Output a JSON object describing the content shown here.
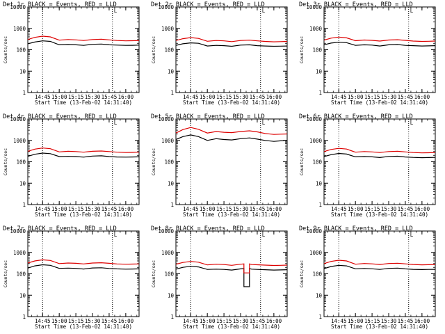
{
  "colors": {
    "events": "#000000",
    "lld": "#dd0000",
    "axes": "#000000",
    "background": "#ffffff"
  },
  "chart_data": [
    {
      "type": "line",
      "title": "Det 1r BLACK = Events, RED = LLD",
      "xlabel": "Start Time (13-Feb-02 14:31:40)",
      "ylabel": "Counts/sec",
      "yscale": "log",
      "ylim": [
        1,
        10000
      ],
      "yticks": [
        "1",
        "10",
        "100",
        "1000",
        "10000"
      ],
      "xlim": [
        "14:31:40",
        "16:12:00"
      ],
      "xticks": [
        "14:45",
        "15:00",
        "15:15",
        "15:30",
        "15:45",
        "16:00"
      ],
      "vlines": [
        "14:45",
        "15:48"
      ],
      "corner_mark": "L",
      "x": [
        "14:31:40",
        "14:38",
        "14:45",
        "14:52",
        "15:00",
        "15:08",
        "15:15",
        "15:22",
        "15:30",
        "15:38",
        "15:45",
        "15:52",
        "16:00",
        "16:06",
        "16:12"
      ],
      "series": [
        {
          "name": "BLACK = Events",
          "values": [
            190,
            230,
            260,
            245,
            170,
            175,
            170,
            160,
            180,
            185,
            170,
            165,
            160,
            162,
            165
          ]
        },
        {
          "name": "RED = LLD",
          "values": [
            300,
            380,
            430,
            400,
            280,
            300,
            290,
            270,
            300,
            310,
            290,
            270,
            260,
            265,
            268
          ]
        }
      ]
    },
    {
      "type": "line",
      "title": "Det 2r BLACK = Events, RED = LLD",
      "xlabel": "Start Time (13-Feb-02 14:31:40)",
      "ylabel": "Counts/sec",
      "yscale": "log",
      "ylim": [
        1,
        10000
      ],
      "yticks": [
        "1",
        "10",
        "100",
        "1000",
        "10000"
      ],
      "xlim": [
        "14:31:40",
        "16:12:00"
      ],
      "xticks": [
        "14:45",
        "15:00",
        "15:15",
        "15:30",
        "15:45",
        "16:00"
      ],
      "vlines": [
        "14:45",
        "15:48"
      ],
      "corner_mark": "L",
      "x": [
        "14:31:40",
        "14:38",
        "14:45",
        "14:52",
        "15:00",
        "15:08",
        "15:15",
        "15:22",
        "15:30",
        "15:38",
        "15:45",
        "15:52",
        "16:00",
        "16:06",
        "16:12"
      ],
      "series": [
        {
          "name": "BLACK = Events",
          "values": [
            160,
            190,
            210,
            200,
            150,
            160,
            155,
            145,
            165,
            170,
            155,
            150,
            145,
            148,
            150
          ]
        },
        {
          "name": "RED = LLD",
          "values": [
            270,
            330,
            370,
            340,
            250,
            270,
            260,
            240,
            270,
            280,
            260,
            245,
            235,
            240,
            245
          ]
        }
      ]
    },
    {
      "type": "line",
      "title": "Det 3r BLACK = Events, RED = LLD",
      "xlabel": "Start Time (13-Feb-02 14:31:40)",
      "ylabel": "Counts/sec",
      "yscale": "log",
      "ylim": [
        1,
        10000
      ],
      "yticks": [
        "1",
        "10",
        "100",
        "1000",
        "10000"
      ],
      "xlim": [
        "14:31:40",
        "16:12:00"
      ],
      "xticks": [
        "14:45",
        "15:00",
        "15:15",
        "15:30",
        "15:45",
        "16:00"
      ],
      "vlines": [
        "14:45",
        "15:48"
      ],
      "corner_mark": "L",
      "x": [
        "14:31:40",
        "14:38",
        "14:45",
        "14:52",
        "15:00",
        "15:08",
        "15:15",
        "15:22",
        "15:30",
        "15:38",
        "15:45",
        "15:52",
        "16:00",
        "16:06",
        "16:12"
      ],
      "series": [
        {
          "name": "BLACK = Events",
          "values": [
            170,
            205,
            225,
            215,
            160,
            170,
            165,
            150,
            170,
            175,
            160,
            155,
            150,
            152,
            155
          ]
        },
        {
          "name": "RED = LLD",
          "values": [
            280,
            350,
            390,
            360,
            265,
            285,
            275,
            255,
            285,
            295,
            275,
            255,
            245,
            250,
            255
          ]
        }
      ]
    },
    {
      "type": "line",
      "title": "Det 4r BLACK = Events, RED = LLD",
      "xlabel": "Start Time (13-Feb-02 14:31:40)",
      "ylabel": "Counts/sec",
      "yscale": "log",
      "ylim": [
        1,
        10000
      ],
      "yticks": [
        "1",
        "10",
        "100",
        "1000",
        "10000"
      ],
      "xlim": [
        "14:31:40",
        "16:12:00"
      ],
      "xticks": [
        "14:45",
        "15:00",
        "15:15",
        "15:30",
        "15:45",
        "16:00"
      ],
      "vlines": [
        "14:45",
        "15:48"
      ],
      "corner_mark": "L",
      "x": [
        "14:31:40",
        "14:38",
        "14:45",
        "14:52",
        "15:00",
        "15:08",
        "15:15",
        "15:22",
        "15:30",
        "15:38",
        "15:45",
        "15:52",
        "16:00",
        "16:06",
        "16:12"
      ],
      "series": [
        {
          "name": "BLACK = Events",
          "values": [
            180,
            225,
            255,
            240,
            175,
            180,
            175,
            165,
            185,
            190,
            175,
            168,
            165,
            168,
            170
          ]
        },
        {
          "name": "RED = LLD",
          "values": [
            310,
            390,
            440,
            410,
            290,
            310,
            300,
            280,
            310,
            320,
            300,
            280,
            270,
            275,
            280
          ]
        }
      ]
    },
    {
      "type": "line",
      "title": "Det 5r BLACK = Events, RED = LLD",
      "xlabel": "Start Time (13-Feb-02 14:31:40)",
      "ylabel": "Counts/sec",
      "yscale": "log",
      "ylim": [
        1,
        10000
      ],
      "yticks": [
        "1",
        "10",
        "100",
        "1000",
        "10000"
      ],
      "xlim": [
        "14:31:40",
        "16:12:00"
      ],
      "xticks": [
        "14:45",
        "15:00",
        "15:15",
        "15:30",
        "15:45",
        "16:00"
      ],
      "vlines": [
        "14:45",
        "15:48"
      ],
      "corner_mark": "L",
      "x": [
        "14:31:40",
        "14:38",
        "14:45",
        "14:52",
        "15:00",
        "15:08",
        "15:15",
        "15:22",
        "15:30",
        "15:38",
        "15:45",
        "15:52",
        "16:00",
        "16:06",
        "16:12"
      ],
      "series": [
        {
          "name": "BLACK = Events",
          "values": [
            1100,
            1500,
            1800,
            1500,
            1000,
            1200,
            1100,
            1050,
            1200,
            1300,
            1150,
            1000,
            900,
            950,
            1000
          ]
        },
        {
          "name": "RED = LLD",
          "values": [
            2200,
            3200,
            4000,
            3300,
            2200,
            2600,
            2400,
            2300,
            2600,
            2800,
            2500,
            2100,
            1900,
            1950,
            2000
          ]
        }
      ]
    },
    {
      "type": "line",
      "title": "Det 6r BLACK = Events, RED = LLD",
      "xlabel": "Start Time (13-Feb-02 14:31:40)",
      "ylabel": "Counts/sec",
      "yscale": "log",
      "ylim": [
        1,
        10000
      ],
      "yticks": [
        "1",
        "10",
        "100",
        "1000",
        "10000"
      ],
      "xlim": [
        "14:31:40",
        "16:12:00"
      ],
      "xticks": [
        "14:45",
        "15:00",
        "15:15",
        "15:30",
        "15:45",
        "16:00"
      ],
      "vlines": [
        "14:45",
        "15:48"
      ],
      "corner_mark": "L",
      "x": [
        "14:31:40",
        "14:38",
        "14:45",
        "14:52",
        "15:00",
        "15:08",
        "15:15",
        "15:22",
        "15:30",
        "15:38",
        "15:45",
        "15:52",
        "16:00",
        "16:06",
        "16:12"
      ],
      "series": [
        {
          "name": "BLACK = Events",
          "values": [
            175,
            215,
            245,
            230,
            170,
            175,
            170,
            158,
            178,
            182,
            168,
            160,
            155,
            158,
            160
          ]
        },
        {
          "name": "RED = LLD",
          "values": [
            300,
            375,
            425,
            395,
            280,
            300,
            290,
            270,
            300,
            310,
            290,
            270,
            260,
            265,
            270
          ]
        }
      ]
    },
    {
      "type": "line",
      "title": "Det 7r BLACK = Events, RED = LLD",
      "xlabel": "Start Time (13-Feb-02 14:31:40)",
      "ylabel": "Counts/sec",
      "yscale": "log",
      "ylim": [
        1,
        10000
      ],
      "yticks": [
        "1",
        "10",
        "100",
        "1000",
        "10000"
      ],
      "xlim": [
        "14:31:40",
        "16:12:00"
      ],
      "xticks": [
        "14:45",
        "15:00",
        "15:15",
        "15:30",
        "15:45",
        "16:00"
      ],
      "vlines": [
        "14:45",
        "15:48"
      ],
      "corner_mark": "L",
      "x": [
        "14:31:40",
        "14:38",
        "14:45",
        "14:52",
        "15:00",
        "15:08",
        "15:15",
        "15:22",
        "15:30",
        "15:38",
        "15:45",
        "15:52",
        "16:00",
        "16:06",
        "16:12"
      ],
      "series": [
        {
          "name": "BLACK = Events",
          "values": [
            185,
            235,
            265,
            250,
            180,
            185,
            180,
            168,
            188,
            192,
            178,
            170,
            165,
            168,
            170
          ]
        },
        {
          "name": "RED = LLD",
          "values": [
            320,
            400,
            450,
            420,
            300,
            320,
            310,
            290,
            320,
            330,
            310,
            290,
            280,
            285,
            290
          ]
        }
      ]
    },
    {
      "type": "line",
      "title": "Det 8r BLACK = Events, RED = LLD",
      "xlabel": "Start Time (13-Feb-02 14:31:40)",
      "ylabel": "Counts/sec",
      "yscale": "log",
      "ylim": [
        1,
        10000
      ],
      "yticks": [
        "1",
        "10",
        "100",
        "1000",
        "10000"
      ],
      "xlim": [
        "14:31:40",
        "16:12:00"
      ],
      "xticks": [
        "14:45",
        "15:00",
        "15:15",
        "15:30",
        "15:45",
        "16:00"
      ],
      "vlines": [
        "14:45",
        "15:48"
      ],
      "corner_mark": "L",
      "x": [
        "14:31:40",
        "14:38",
        "14:45",
        "14:52",
        "15:00",
        "15:08",
        "15:15",
        "15:22",
        "15:30",
        "15:33",
        "15:33",
        "15:38",
        "15:38",
        "15:40",
        "15:45",
        "15:52",
        "16:00",
        "16:06",
        "16:12"
      ],
      "series": [
        {
          "name": "BLACK = Events",
          "values": [
            165,
            200,
            225,
            210,
            160,
            165,
            160,
            150,
            170,
            175,
            25,
            25,
            175,
            165,
            160,
            155,
            150,
            152,
            155
          ]
        },
        {
          "name": "RED = LLD",
          "values": [
            280,
            340,
            380,
            350,
            260,
            280,
            270,
            250,
            280,
            290,
            110,
            110,
            290,
            270,
            265,
            255,
            245,
            250,
            255
          ]
        }
      ]
    },
    {
      "type": "line",
      "title": "Det 9r BLACK = Events, RED = LLD",
      "xlabel": "Start Time (13-Feb-02 14:31:40)",
      "ylabel": "Counts/sec",
      "yscale": "log",
      "ylim": [
        1,
        10000
      ],
      "yticks": [
        "1",
        "10",
        "100",
        "1000",
        "10000"
      ],
      "xlim": [
        "14:31:40",
        "16:12:00"
      ],
      "xticks": [
        "14:45",
        "15:00",
        "15:15",
        "15:30",
        "15:45",
        "16:00"
      ],
      "vlines": [
        "14:45",
        "15:48"
      ],
      "corner_mark": "L",
      "x": [
        "14:31:40",
        "14:38",
        "14:45",
        "14:52",
        "15:00",
        "15:08",
        "15:15",
        "15:22",
        "15:30",
        "15:38",
        "15:45",
        "15:52",
        "16:00",
        "16:06",
        "16:12"
      ],
      "series": [
        {
          "name": "BLACK = Events",
          "values": [
            175,
            220,
            250,
            235,
            172,
            178,
            172,
            160,
            180,
            185,
            170,
            162,
            158,
            160,
            162
          ]
        },
        {
          "name": "RED = LLD",
          "values": [
            300,
            380,
            430,
            400,
            282,
            302,
            292,
            272,
            302,
            312,
            292,
            272,
            262,
            267,
            272
          ]
        }
      ]
    }
  ]
}
